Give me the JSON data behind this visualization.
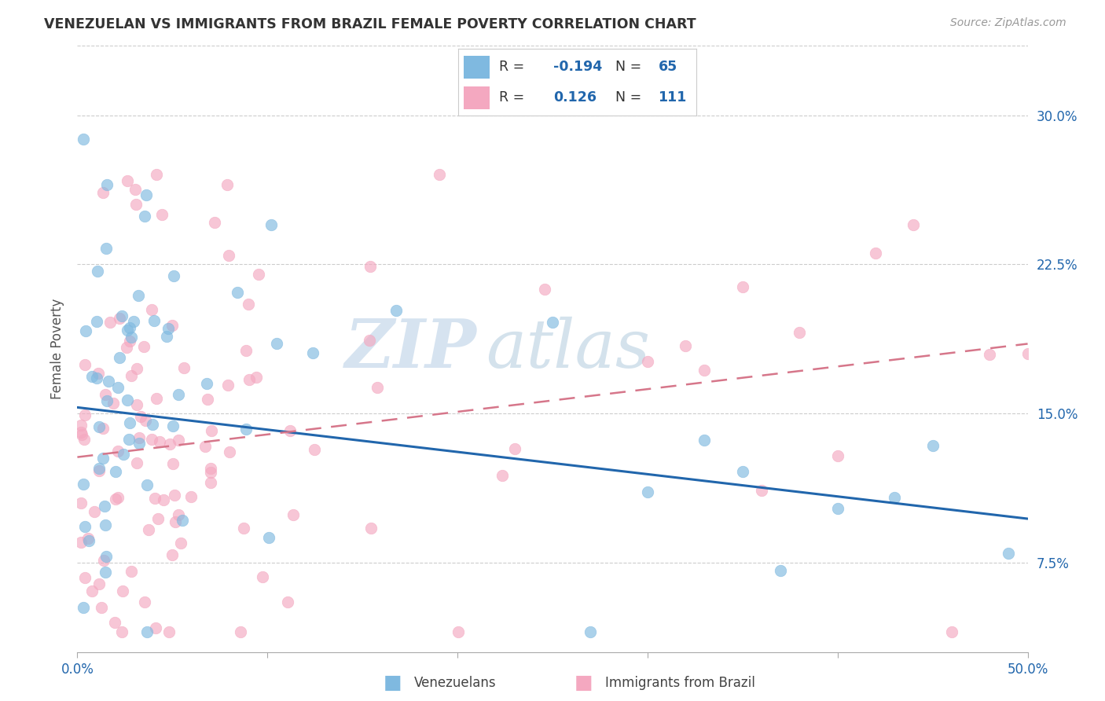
{
  "title": "VENEZUELAN VS IMMIGRANTS FROM BRAZIL FEMALE POVERTY CORRELATION CHART",
  "source": "Source: ZipAtlas.com",
  "ylabel": "Female Poverty",
  "yticks": [
    0.075,
    0.15,
    0.225,
    0.3
  ],
  "ytick_labels": [
    "7.5%",
    "15.0%",
    "22.5%",
    "30.0%"
  ],
  "xlim": [
    0.0,
    0.5
  ],
  "ylim": [
    0.03,
    0.335
  ],
  "legend_venezuelans_label": "Venezuelans",
  "legend_brazil_label": "Immigrants from Brazil",
  "R_venezuelans": "-0.194",
  "N_venezuelans": "65",
  "R_brazil": "0.126",
  "N_brazil": "111",
  "venezuelans_color": "#7fb9e0",
  "brazil_color": "#f4a8c0",
  "trend_venezuelans_color": "#2166ac",
  "trend_brazil_color": "#d6768a",
  "watermark_zip": "ZIP",
  "watermark_atlas": "atlas",
  "background_color": "#ffffff",
  "ven_trend_x0": 0.0,
  "ven_trend_y0": 0.153,
  "ven_trend_x1": 0.5,
  "ven_trend_y1": 0.097,
  "bra_trend_x0": 0.0,
  "bra_trend_y0": 0.128,
  "bra_trend_x1": 0.5,
  "bra_trend_y1": 0.185
}
